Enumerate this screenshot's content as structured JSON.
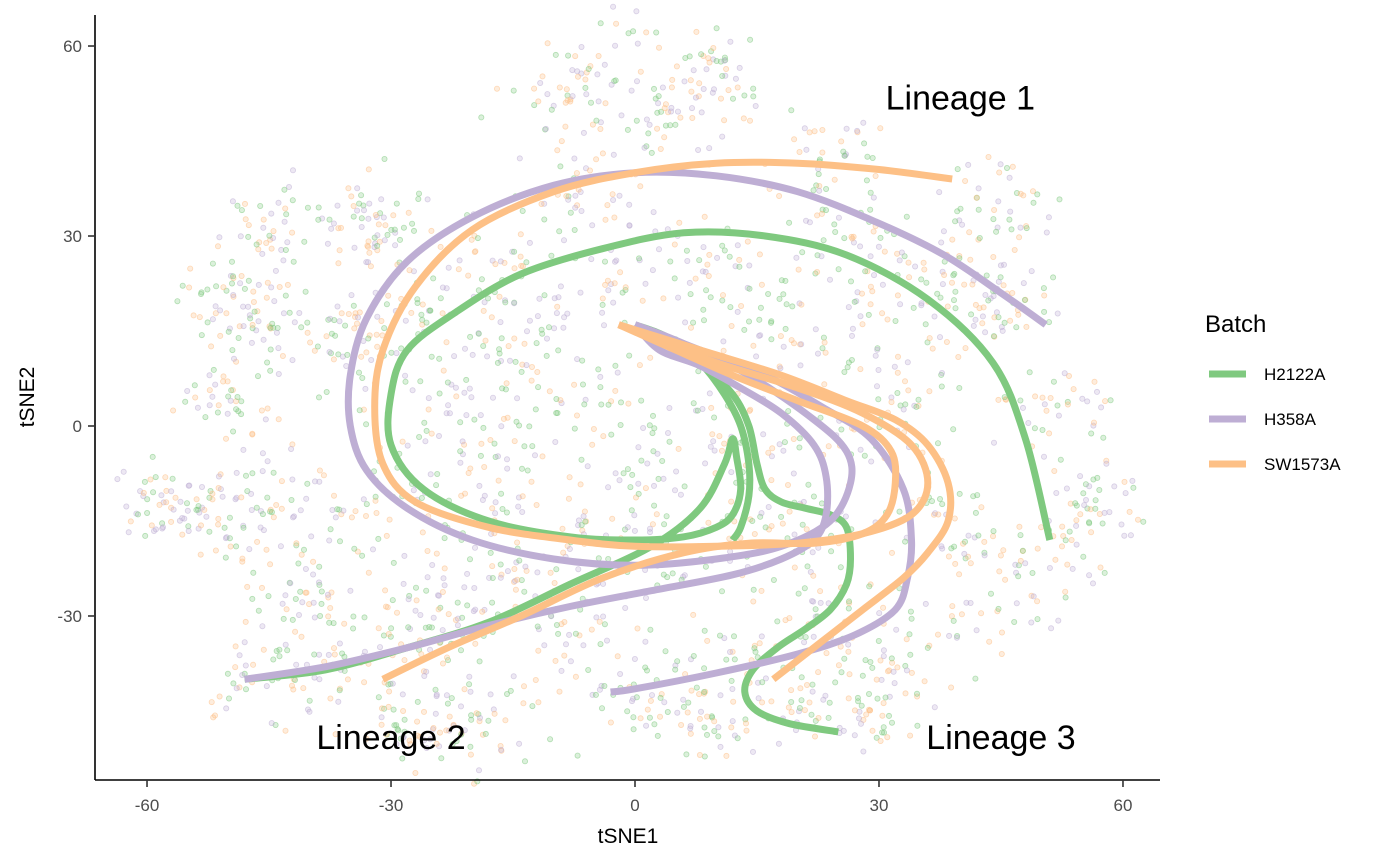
{
  "chart_data": {
    "type": "scatter",
    "xlabel": "tSNE1",
    "ylabel": "tSNE2",
    "xlim": [
      -62,
      64
    ],
    "ylim": [
      -56,
      65
    ],
    "x_ticks": [
      -60,
      -30,
      0,
      30,
      60
    ],
    "y_ticks": [
      -30,
      0,
      30,
      60
    ],
    "grid": false,
    "legend": {
      "title": "Batch",
      "placement": "right",
      "entries": [
        {
          "name": "H2122A",
          "color": "#7fc97f"
        },
        {
          "name": "H358A",
          "color": "#beaed4"
        },
        {
          "name": "SW1573A",
          "color": "#fdc086"
        }
      ]
    },
    "annotations": [
      {
        "text": "Lineage 1",
        "x": 40,
        "y": 50
      },
      {
        "text": "Lineage 2",
        "x": -30,
        "y": -51
      },
      {
        "text": "Lineage 3",
        "x": 45,
        "y": -51
      }
    ],
    "point_clusters": [
      {
        "x": -10,
        "y": 53,
        "spread": 4
      },
      {
        "x": 0,
        "y": 57,
        "spread": 5
      },
      {
        "x": 5,
        "y": 48,
        "spread": 4
      },
      {
        "x": 11,
        "y": 55,
        "spread": 3
      },
      {
        "x": 24,
        "y": 42,
        "spread": 4
      },
      {
        "x": 46,
        "y": 34,
        "spread": 4
      },
      {
        "x": 42,
        "y": 24,
        "spread": 5
      },
      {
        "x": 44,
        "y": 18,
        "spread": 3
      },
      {
        "x": 52,
        "y": 3,
        "spread": 4
      },
      {
        "x": 57,
        "y": -12,
        "spread": 3
      },
      {
        "x": 52,
        "y": -20,
        "spread": 4
      },
      {
        "x": 44,
        "y": -26,
        "spread": 4
      },
      {
        "x": 38,
        "y": -14,
        "spread": 4
      },
      {
        "x": -35,
        "y": 33,
        "spread": 4
      },
      {
        "x": -45,
        "y": 30,
        "spread": 3
      },
      {
        "x": -50,
        "y": 20,
        "spread": 3
      },
      {
        "x": -45,
        "y": 15,
        "spread": 4
      },
      {
        "x": -37,
        "y": 14,
        "spread": 4
      },
      {
        "x": -50,
        "y": 4,
        "spread": 3
      },
      {
        "x": -43,
        "y": -8,
        "spread": 4
      },
      {
        "x": -58,
        "y": -12,
        "spread": 3
      },
      {
        "x": -53,
        "y": -14,
        "spread": 4
      },
      {
        "x": -45,
        "y": -20,
        "spread": 5
      },
      {
        "x": -40,
        "y": -30,
        "spread": 4
      },
      {
        "x": -45,
        "y": -40,
        "spread": 4
      },
      {
        "x": -37,
        "y": -38,
        "spread": 4
      },
      {
        "x": -25,
        "y": -40,
        "spread": 5
      },
      {
        "x": -18,
        "y": -48,
        "spread": 4
      },
      {
        "x": -27,
        "y": -48,
        "spread": 3
      },
      {
        "x": -5,
        "y": -33,
        "spread": 4
      },
      {
        "x": 10,
        "y": -36,
        "spread": 5
      },
      {
        "x": 10,
        "y": -47,
        "spread": 3
      },
      {
        "x": 20,
        "y": -43,
        "spread": 4
      },
      {
        "x": 28,
        "y": -45,
        "spread": 3
      },
      {
        "x": 33,
        "y": -38,
        "spread": 4
      },
      {
        "x": 23,
        "y": -30,
        "spread": 4
      },
      {
        "x": 22,
        "y": -18,
        "spread": 5
      },
      {
        "x": 12,
        "y": -17,
        "spread": 4
      },
      {
        "x": 0,
        "y": -18,
        "spread": 5
      },
      {
        "x": -12,
        "y": -16,
        "spread": 5
      },
      {
        "x": -25,
        "y": -20,
        "spread": 5
      },
      {
        "x": -28,
        "y": -10,
        "spread": 5
      },
      {
        "x": -18,
        "y": -4,
        "spread": 5
      },
      {
        "x": -8,
        "y": 2,
        "spread": 5
      },
      {
        "x": 2,
        "y": -4,
        "spread": 5
      },
      {
        "x": 10,
        "y": 8,
        "spread": 5
      },
      {
        "x": -25,
        "y": 5,
        "spread": 5
      },
      {
        "x": -30,
        "y": 18,
        "spread": 4
      },
      {
        "x": -20,
        "y": 25,
        "spread": 5
      },
      {
        "x": -10,
        "y": 22,
        "spread": 5
      },
      {
        "x": 0,
        "y": 25,
        "spread": 5
      },
      {
        "x": 10,
        "y": 25,
        "spread": 4
      },
      {
        "x": 20,
        "y": 15,
        "spread": 5
      },
      {
        "x": 30,
        "y": 10,
        "spread": 5
      },
      {
        "x": 30,
        "y": 0,
        "spread": 5
      },
      {
        "x": 35,
        "y": 22,
        "spread": 4
      },
      {
        "x": 25,
        "y": 30,
        "spread": 4
      },
      {
        "x": -15,
        "y": 10,
        "spread": 4
      },
      {
        "x": 15,
        "y": -4,
        "spread": 4
      },
      {
        "x": -25,
        "y": -30,
        "spread": 4
      },
      {
        "x": -15,
        "y": -28,
        "spread": 4
      },
      {
        "x": 0,
        "y": -42,
        "spread": 3
      },
      {
        "x": -30,
        "y": 30,
        "spread": 4
      },
      {
        "x": -5,
        "y": 38,
        "spread": 4
      }
    ],
    "series": [
      {
        "name": "H2122A",
        "color": "#7fc97f",
        "curves": [
          {
            "points": [
              [
                -48,
                -40
              ],
              [
                -38,
                -38.5
              ],
              [
                -28,
                -35
              ],
              [
                -18,
                -31
              ],
              [
                -8,
                -25
              ],
              [
                2,
                -19
              ],
              [
                8,
                -13
              ],
              [
                11,
                -6
              ],
              [
                12,
                -2
              ],
              [
                12.5,
                -5
              ],
              [
                13,
                -10
              ],
              [
                12,
                -14
              ],
              [
                10,
                -16
              ],
              [
                6,
                -17.5
              ],
              [
                0,
                -18
              ],
              [
                -8,
                -17.5
              ],
              [
                -18,
                -15
              ],
              [
                -26,
                -10
              ],
              [
                -30,
                -3
              ],
              [
                -30,
                5
              ],
              [
                -28,
                12
              ],
              [
                -22,
                18
              ],
              [
                -14,
                24
              ],
              [
                -4,
                28
              ],
              [
                6,
                30.5
              ],
              [
                16,
                30
              ],
              [
                26,
                27
              ],
              [
                36,
                20
              ],
              [
                44,
                10
              ],
              [
                48,
                -2
              ],
              [
                51,
                -18
              ]
            ]
          },
          {
            "points": [
              [
                0,
                16
              ],
              [
                4,
                14
              ],
              [
                8,
                10
              ],
              [
                11,
                5
              ],
              [
                13,
                0
              ],
              [
                14,
                -6
              ],
              [
                14,
                -11
              ],
              [
                13,
                -16
              ],
              [
                12,
                -18
              ]
            ]
          },
          {
            "points": [
              [
                4,
                14
              ],
              [
                8,
                10
              ],
              [
                12,
                5
              ],
              [
                14,
                0
              ],
              [
                15,
                -6
              ],
              [
                16,
                -10
              ],
              [
                18,
                -12
              ],
              [
                21,
                -13
              ],
              [
                24,
                -14
              ],
              [
                26,
                -16
              ],
              [
                26.5,
                -21
              ],
              [
                26,
                -25
              ],
              [
                24,
                -29
              ],
              [
                21,
                -32
              ],
              [
                17.5,
                -35
              ],
              [
                14.5,
                -38.5
              ],
              [
                13.5,
                -42
              ],
              [
                15,
                -45
              ],
              [
                19,
                -47
              ],
              [
                25,
                -48.3
              ]
            ]
          }
        ]
      },
      {
        "name": "H358A",
        "color": "#beaed4",
        "curves": [
          {
            "points": [
              [
                -48,
                -40
              ],
              [
                -38,
                -38
              ],
              [
                -28,
                -35
              ],
              [
                -18,
                -31.5
              ],
              [
                -8,
                -28.5
              ],
              [
                2,
                -26
              ],
              [
                12,
                -23.5
              ],
              [
                18,
                -21
              ],
              [
                22,
                -18
              ],
              [
                23.5,
                -14
              ],
              [
                23.5,
                -8
              ],
              [
                22,
                -3
              ],
              [
                18,
                2
              ],
              [
                13,
                6
              ],
              [
                8,
                9.5
              ],
              [
                3,
                12
              ],
              [
                0,
                16
              ]
            ]
          },
          {
            "points": [
              [
                50.5,
                16
              ],
              [
                45,
                21
              ],
              [
                38,
                27
              ],
              [
                30,
                32
              ],
              [
                20,
                37
              ],
              [
                10,
                39.5
              ],
              [
                0,
                40
              ],
              [
                -10,
                38
              ],
              [
                -20,
                33
              ],
              [
                -28,
                26
              ],
              [
                -33,
                17
              ],
              [
                -35,
                8
              ],
              [
                -35,
                0
              ],
              [
                -33,
                -7
              ],
              [
                -28,
                -13
              ],
              [
                -20,
                -18
              ],
              [
                -10,
                -21
              ],
              [
                0,
                -22
              ],
              [
                10,
                -21
              ],
              [
                18,
                -19
              ],
              [
                24,
                -15
              ],
              [
                26.5,
                -9
              ],
              [
                26,
                -4
              ],
              [
                22,
                1
              ],
              [
                14,
                8
              ],
              [
                6,
                13
              ],
              [
                0,
                16
              ]
            ]
          },
          {
            "points": [
              [
                0,
                16
              ],
              [
                8,
                12
              ],
              [
                16,
                8
              ],
              [
                23,
                3
              ],
              [
                29,
                -2
              ],
              [
                33,
                -10
              ],
              [
                34,
                -18
              ],
              [
                33.5,
                -24
              ],
              [
                32,
                -29
              ],
              [
                27,
                -33
              ],
              [
                20,
                -36
              ],
              [
                10,
                -39
              ],
              [
                0,
                -41.5
              ],
              [
                -3,
                -42
              ]
            ]
          }
        ]
      },
      {
        "name": "SW1573A",
        "color": "#fdc086",
        "curves": [
          {
            "points": [
              [
                -31,
                -40
              ],
              [
                -23,
                -35
              ],
              [
                -14,
                -30
              ],
              [
                -4,
                -24
              ],
              [
                6,
                -20
              ],
              [
                14,
                -18.5
              ],
              [
                22,
                -18.5
              ],
              [
                28,
                -17
              ],
              [
                31,
                -14
              ],
              [
                32,
                -9
              ],
              [
                31.5,
                -4
              ],
              [
                28,
                0
              ],
              [
                20,
                4
              ],
              [
                12,
                8
              ],
              [
                5,
                12
              ],
              [
                -2,
                16
              ]
            ]
          },
          {
            "points": [
              [
                39,
                39
              ],
              [
                30,
                40.5
              ],
              [
                20,
                41.5
              ],
              [
                10,
                41.5
              ],
              [
                0,
                40
              ],
              [
                -10,
                37
              ],
              [
                -20,
                31
              ],
              [
                -27,
                22
              ],
              [
                -31,
                12
              ],
              [
                -32,
                3
              ],
              [
                -31,
                -6
              ],
              [
                -27,
                -12
              ],
              [
                -18,
                -16
              ],
              [
                -8,
                -18
              ],
              [
                0,
                -19
              ],
              [
                10,
                -19
              ],
              [
                20,
                -18.5
              ],
              [
                28,
                -17
              ],
              [
                34,
                -14
              ],
              [
                36,
                -9
              ],
              [
                34,
                -3
              ],
              [
                28,
                2
              ],
              [
                20,
                6
              ],
              [
                10,
                10
              ],
              [
                2,
                14
              ],
              [
                -2,
                16
              ]
            ]
          },
          {
            "points": [
              [
                -2,
                16
              ],
              [
                8,
                12
              ],
              [
                18,
                8
              ],
              [
                26,
                4
              ],
              [
                32,
                1
              ],
              [
                36,
                -3
              ],
              [
                38.5,
                -9
              ],
              [
                38.5,
                -15
              ],
              [
                36,
                -20
              ],
              [
                33,
                -24
              ],
              [
                28,
                -29
              ],
              [
                24,
                -33
              ],
              [
                20,
                -37
              ],
              [
                17,
                -40
              ]
            ]
          }
        ]
      }
    ]
  }
}
